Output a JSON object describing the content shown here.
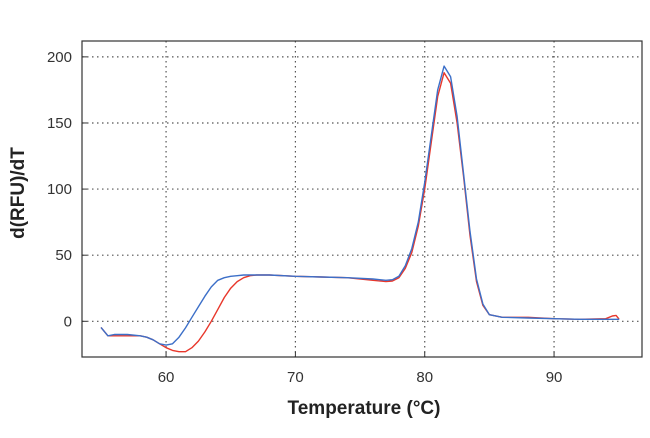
{
  "chart_data": {
    "type": "line",
    "title": "",
    "xlabel": "Temperature (°C)",
    "ylabel": "d(RFU)/dT",
    "xlim": [
      53.5,
      96.8
    ],
    "ylim": [
      -27,
      212
    ],
    "x_ticks": [
      60,
      70,
      80,
      90
    ],
    "y_ticks": [
      0,
      50,
      100,
      150,
      200
    ],
    "grid": true,
    "legend": "none",
    "series": [
      {
        "color": "#e8372b",
        "points": [
          [
            55.0,
            -5
          ],
          [
            55.5,
            -11
          ],
          [
            56.0,
            -11
          ],
          [
            57.0,
            -11
          ],
          [
            58.0,
            -11
          ],
          [
            58.5,
            -12
          ],
          [
            59.0,
            -14
          ],
          [
            59.5,
            -17
          ],
          [
            60.0,
            -20
          ],
          [
            60.5,
            -22
          ],
          [
            61.0,
            -23
          ],
          [
            61.5,
            -23
          ],
          [
            62.0,
            -20
          ],
          [
            62.5,
            -15
          ],
          [
            63.0,
            -8
          ],
          [
            63.5,
            0
          ],
          [
            64.0,
            9
          ],
          [
            64.5,
            18
          ],
          [
            65.0,
            25
          ],
          [
            65.5,
            30
          ],
          [
            66.0,
            33
          ],
          [
            66.5,
            34.5
          ],
          [
            67.0,
            35
          ],
          [
            68.0,
            35
          ],
          [
            70.0,
            34
          ],
          [
            72.0,
            33.5
          ],
          [
            74.0,
            33
          ],
          [
            76.0,
            31
          ],
          [
            77.0,
            30
          ],
          [
            77.5,
            30.5
          ],
          [
            78.0,
            33
          ],
          [
            78.5,
            40
          ],
          [
            79.0,
            52
          ],
          [
            79.5,
            72
          ],
          [
            80.0,
            100
          ],
          [
            80.5,
            135
          ],
          [
            81.0,
            170
          ],
          [
            81.5,
            188
          ],
          [
            82.0,
            180
          ],
          [
            82.5,
            150
          ],
          [
            83.0,
            110
          ],
          [
            83.5,
            65
          ],
          [
            84.0,
            30
          ],
          [
            84.5,
            12
          ],
          [
            85.0,
            5
          ],
          [
            86.0,
            3
          ],
          [
            88.0,
            3
          ],
          [
            90.0,
            2
          ],
          [
            92.0,
            1.5
          ],
          [
            94.0,
            2
          ],
          [
            94.5,
            4
          ],
          [
            94.8,
            4.5
          ],
          [
            95.0,
            2
          ]
        ]
      },
      {
        "color": "#3c6fc8",
        "points": [
          [
            55.0,
            -5
          ],
          [
            55.5,
            -11
          ],
          [
            56.0,
            -10
          ],
          [
            57.0,
            -10
          ],
          [
            58.0,
            -11
          ],
          [
            58.5,
            -12
          ],
          [
            59.0,
            -14
          ],
          [
            59.5,
            -17
          ],
          [
            60.0,
            -18
          ],
          [
            60.5,
            -17
          ],
          [
            61.0,
            -12
          ],
          [
            61.5,
            -5
          ],
          [
            62.0,
            3
          ],
          [
            62.5,
            11
          ],
          [
            63.0,
            19
          ],
          [
            63.5,
            26
          ],
          [
            64.0,
            31
          ],
          [
            64.5,
            33
          ],
          [
            65.0,
            34
          ],
          [
            65.5,
            34.5
          ],
          [
            66.0,
            35
          ],
          [
            67.0,
            35
          ],
          [
            68.0,
            35
          ],
          [
            70.0,
            34
          ],
          [
            72.0,
            33.5
          ],
          [
            74.0,
            33
          ],
          [
            76.0,
            32
          ],
          [
            77.0,
            31
          ],
          [
            77.5,
            31.5
          ],
          [
            78.0,
            34
          ],
          [
            78.5,
            42
          ],
          [
            79.0,
            55
          ],
          [
            79.5,
            75
          ],
          [
            80.0,
            105
          ],
          [
            80.5,
            140
          ],
          [
            81.0,
            175
          ],
          [
            81.5,
            193
          ],
          [
            82.0,
            185
          ],
          [
            82.5,
            155
          ],
          [
            83.0,
            112
          ],
          [
            83.5,
            68
          ],
          [
            84.0,
            32
          ],
          [
            84.5,
            13
          ],
          [
            85.0,
            5
          ],
          [
            86.0,
            3
          ],
          [
            88.0,
            2.5
          ],
          [
            90.0,
            2
          ],
          [
            92.0,
            1.5
          ],
          [
            94.0,
            1.5
          ],
          [
            95.0,
            1.5
          ]
        ]
      }
    ]
  }
}
